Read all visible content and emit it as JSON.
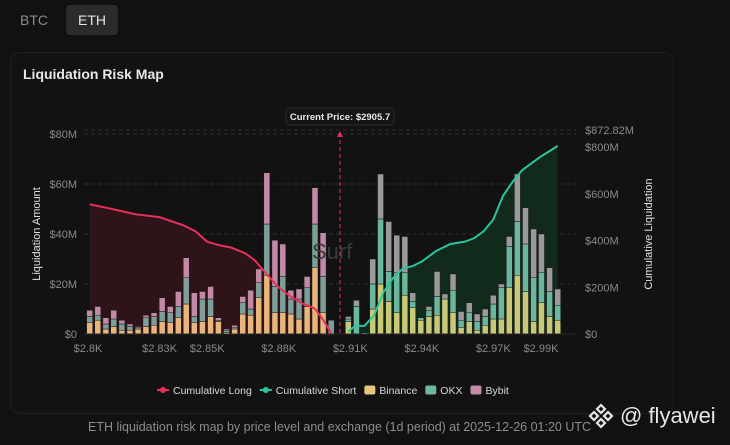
{
  "tabs": [
    {
      "label": "BTC",
      "active": false
    },
    {
      "label": "ETH",
      "active": true
    }
  ],
  "card": {
    "title": "Liquidation Risk Map"
  },
  "caption": "ETH liquidation risk map by price level and exchange (1d period) at 2025-12-26 01:20 UTC",
  "watermark": {
    "handle": "@ flyawei",
    "logo": "binance-square-logo"
  },
  "chart_data": {
    "type": "bar",
    "title": "Liquidation Risk Map",
    "xlabel": "",
    "ylabel": "Liquidation Amount",
    "y2label": "Cumulative Liquidation",
    "ylim": [
      0,
      80
    ],
    "y2lim": [
      0,
      872.82
    ],
    "y_ticks": [
      "$0",
      "$20M",
      "$40M",
      "$60M",
      "$80M"
    ],
    "y2_ticks": [
      "$0",
      "$200M",
      "$400M",
      "$600M",
      "$800M",
      "$872.82M"
    ],
    "x_ticks": [
      {
        "label": "$2.8K",
        "value": 2800
      },
      {
        "label": "$2.83K",
        "value": 2830
      },
      {
        "label": "$2.85K",
        "value": 2850
      },
      {
        "label": "$2.88K",
        "value": 2880
      },
      {
        "label": "$2.91K",
        "value": 2910
      },
      {
        "label": "$2.94K",
        "value": 2940
      },
      {
        "label": "$2.97K",
        "value": 2970
      },
      {
        "label": "$2.99K",
        "value": 2990
      }
    ],
    "xlim": [
      2799,
      2998
    ],
    "current_price": {
      "label": "Current Price: $2905.7",
      "value": 2905.7
    },
    "grid": true,
    "legend_position": "bottom",
    "legend": [
      {
        "name": "Cumulative Long",
        "type": "line",
        "color": "#e8305a"
      },
      {
        "name": "Cumulative Short",
        "type": "line",
        "color": "#2bc4a0"
      },
      {
        "name": "Binance",
        "type": "bar",
        "color": "#e6c77a"
      },
      {
        "name": "OKX",
        "type": "bar",
        "color": "#6fb5a4"
      },
      {
        "name": "Bybit",
        "type": "bar",
        "color": "#c48aa8"
      }
    ],
    "colors": {
      "long_binance": "#e8b57a",
      "long_okx": "#7e9e9a",
      "long_bybit": "#c38aa8",
      "short_binance": "#c9c877",
      "short_okx": "#6bb79d",
      "short_bybit_gray": "#9a9a9a",
      "short_bybit_pink": "#c38aa8",
      "long_line": "#e8305a",
      "short_line": "#2bc4a0",
      "long_fill": "#2e1419",
      "short_fill": "#122a1c"
    },
    "long_bars": [
      {
        "price": 2800.7,
        "binance": 4.5,
        "okx": 2.5,
        "bybit": 2.5
      },
      {
        "price": 2804.1,
        "binance": 5.5,
        "okx": 2.0,
        "bybit": 3.5
      },
      {
        "price": 2807.5,
        "binance": 2.0,
        "okx": 2.0,
        "bybit": 2.5
      },
      {
        "price": 2810.8,
        "binance": 3.0,
        "okx": 3.0,
        "bybit": 3.5
      },
      {
        "price": 2814.2,
        "binance": 1.5,
        "okx": 2.5,
        "bybit": 1.5
      },
      {
        "price": 2817.6,
        "binance": 1.5,
        "okx": 1.5,
        "bybit": 1.0
      },
      {
        "price": 2821.0,
        "binance": 2.0,
        "okx": 0.5,
        "bybit": 0.5
      },
      {
        "price": 2824.3,
        "binance": 3.0,
        "okx": 3.5,
        "bybit": 1.0
      },
      {
        "price": 2827.7,
        "binance": 3.5,
        "okx": 3.5,
        "bybit": 1.5
      },
      {
        "price": 2831.1,
        "binance": 5.0,
        "okx": 4.0,
        "bybit": 5.5
      },
      {
        "price": 2834.5,
        "binance": 4.5,
        "okx": 4.0,
        "bybit": 2.5
      },
      {
        "price": 2837.9,
        "binance": 6.5,
        "okx": 4.5,
        "bybit": 6.0
      },
      {
        "price": 2841.2,
        "binance": 12.0,
        "okx": 10.5,
        "bybit": 8.0
      },
      {
        "price": 2844.6,
        "binance": 4.5,
        "okx": 2.5,
        "bybit": 9.5
      },
      {
        "price": 2848.0,
        "binance": 5.0,
        "okx": 9.0,
        "bybit": 3.0
      },
      {
        "price": 2851.4,
        "binance": 7.0,
        "okx": 7.0,
        "bybit": 5.0
      },
      {
        "price": 2854.7,
        "binance": 5.0,
        "okx": 0.5,
        "bybit": 1.0
      },
      {
        "price": 2858.1,
        "binance": 0.5,
        "okx": 1.0,
        "bybit": 0.5
      },
      {
        "price": 2861.5,
        "binance": 2.0,
        "okx": 0.5,
        "bybit": 1.0
      },
      {
        "price": 2864.9,
        "binance": 8.0,
        "okx": 4.5,
        "bybit": 2.5
      },
      {
        "price": 2868.2,
        "binance": 7.5,
        "okx": 2.5,
        "bybit": 7.5
      },
      {
        "price": 2871.6,
        "binance": 14.5,
        "okx": 6.0,
        "bybit": 5.5
      },
      {
        "price": 2875.0,
        "binance": 23.5,
        "okx": 20.5,
        "bybit": 20.5
      },
      {
        "price": 2878.4,
        "binance": 8.5,
        "okx": 10.5,
        "bybit": 18.5
      },
      {
        "price": 2881.7,
        "binance": 8.5,
        "okx": 14.5,
        "bybit": 13.0
      },
      {
        "price": 2885.1,
        "binance": 8.0,
        "okx": 6.0,
        "bybit": 3.5
      },
      {
        "price": 2888.5,
        "binance": 6.0,
        "okx": 8.0,
        "bybit": 4.0
      },
      {
        "price": 2891.9,
        "binance": 11.0,
        "okx": 7.5,
        "bybit": 4.5
      },
      {
        "price": 2895.2,
        "binance": 26.5,
        "okx": 17.5,
        "bybit": 14.5
      },
      {
        "price": 2898.6,
        "binance": 8.5,
        "okx": 14.5,
        "bybit": 17.5
      },
      {
        "price": 2902.0,
        "binance": 0,
        "okx": 5.5,
        "bybit": 0
      }
    ],
    "short_bars": [
      {
        "price": 2909.2,
        "binance": 5.0,
        "okx": 1.0,
        "bybit": 1.0
      },
      {
        "price": 2912.6,
        "binance": 0,
        "okx": 11.0,
        "bybit": 2.5
      },
      {
        "price": 2916.0,
        "binance": 0,
        "okx": 0.5,
        "bybit": 0
      },
      {
        "price": 2919.4,
        "binance": 10.0,
        "okx": 10.0,
        "bybit": 10.0
      },
      {
        "price": 2922.7,
        "binance": 20.0,
        "okx": 26.0,
        "bybit": 18.0
      },
      {
        "price": 2926.1,
        "binance": 13.0,
        "okx": 12.0,
        "bybit": 20.0
      },
      {
        "price": 2929.5,
        "binance": 8.5,
        "okx": 16.0,
        "bybit": 15.0
      },
      {
        "price": 2932.9,
        "binance": 15.5,
        "okx": 9.0,
        "bybit": 14.5
      },
      {
        "price": 2936.2,
        "binance": 10.5,
        "okx": 2.5,
        "bybit": 3.5
      },
      {
        "price": 2939.6,
        "binance": 5.5,
        "okx": 1.0,
        "bybit": 0
      },
      {
        "price": 2943.0,
        "binance": 7.0,
        "okx": 2.5,
        "bybit": 1.5
      },
      {
        "price": 2946.4,
        "binance": 7.5,
        "okx": 7.5,
        "bybit": 10.0
      },
      {
        "price": 2949.7,
        "binance": 14.0,
        "okx": 0,
        "bybit": 2.0
      },
      {
        "price": 2953.1,
        "binance": 8.5,
        "okx": 9.0,
        "bybit": 6.5
      },
      {
        "price": 2956.5,
        "binance": 2.5,
        "okx": 3.0,
        "bybit": 3.5
      },
      {
        "price": 2959.9,
        "binance": 5.0,
        "okx": 3.5,
        "bybit": 4.0
      },
      {
        "price": 2963.2,
        "binance": 1.5,
        "okx": 3.5,
        "bybit": 3.0
      },
      {
        "price": 2966.6,
        "binance": 3.5,
        "okx": 3.5,
        "bybit": 3.0
      },
      {
        "price": 2970.0,
        "binance": 6.0,
        "okx": 6.0,
        "bybit": 3.5
      },
      {
        "price": 2973.4,
        "binance": 6.0,
        "okx": 12.5,
        "bybit": 1.5
      },
      {
        "price": 2976.7,
        "binance": 18.5,
        "okx": 16.5,
        "bybit": 4.0
      },
      {
        "price": 2980.1,
        "binance": 23.5,
        "okx": 21.5,
        "bybit": 19.0
      },
      {
        "price": 2983.5,
        "binance": 17.0,
        "okx": 19.0,
        "bybit": 14.5
      },
      {
        "price": 2986.9,
        "binance": 5.0,
        "okx": 17.5,
        "bybit": 19.5
      },
      {
        "price": 2990.2,
        "binance": 12.5,
        "okx": 12.0,
        "bybit": 15.5
      },
      {
        "price": 2993.6,
        "binance": 7.0,
        "okx": 10.0,
        "bybit": 9.5
      },
      {
        "price": 2997.0,
        "binance": 5.5,
        "okx": 6.0,
        "bybit": 6.5
      }
    ],
    "short_extra_bars": [
      {
        "price": 2976.7,
        "binance": 8.5,
        "okx": 10.5,
        "bybit": 5.0
      },
      {
        "price": 2980.1,
        "binance": 5.5,
        "okx": 4.0,
        "bybit": 2.5
      },
      {
        "price": 2983.5,
        "binance": 12.0,
        "okx": 4.0,
        "bybit": 3.5
      },
      {
        "price": 2986.9,
        "binance": 3.5,
        "okx": 5.0,
        "bybit": 1.5
      },
      {
        "price": 2990.2,
        "binance": 10.0,
        "okx": 7.0,
        "bybit": 5.0
      }
    ],
    "cumulative_long": [
      {
        "price": 2800.7,
        "value": 555
      },
      {
        "price": 2810,
        "value": 535
      },
      {
        "price": 2820,
        "value": 512
      },
      {
        "price": 2830,
        "value": 500
      },
      {
        "price": 2840,
        "value": 465
      },
      {
        "price": 2845,
        "value": 440
      },
      {
        "price": 2850,
        "value": 395
      },
      {
        "price": 2855,
        "value": 380
      },
      {
        "price": 2860,
        "value": 370
      },
      {
        "price": 2866,
        "value": 345
      },
      {
        "price": 2870,
        "value": 315
      },
      {
        "price": 2875,
        "value": 255
      },
      {
        "price": 2880,
        "value": 200
      },
      {
        "price": 2885,
        "value": 160
      },
      {
        "price": 2890,
        "value": 130
      },
      {
        "price": 2895,
        "value": 110
      },
      {
        "price": 2898,
        "value": 70
      },
      {
        "price": 2902,
        "value": 5
      }
    ],
    "cumulative_short": [
      {
        "price": 2909.2,
        "value": 10
      },
      {
        "price": 2912,
        "value": 35
      },
      {
        "price": 2916,
        "value": 35
      },
      {
        "price": 2920,
        "value": 80
      },
      {
        "price": 2924,
        "value": 180
      },
      {
        "price": 2928,
        "value": 240
      },
      {
        "price": 2932,
        "value": 280
      },
      {
        "price": 2936,
        "value": 290
      },
      {
        "price": 2940,
        "value": 310
      },
      {
        "price": 2946,
        "value": 355
      },
      {
        "price": 2952,
        "value": 385
      },
      {
        "price": 2958,
        "value": 395
      },
      {
        "price": 2962,
        "value": 410
      },
      {
        "price": 2966,
        "value": 440
      },
      {
        "price": 2970,
        "value": 490
      },
      {
        "price": 2974,
        "value": 590
      },
      {
        "price": 2978,
        "value": 650
      },
      {
        "price": 2982,
        "value": 700
      },
      {
        "price": 2986,
        "value": 730
      },
      {
        "price": 2990,
        "value": 760
      },
      {
        "price": 2994,
        "value": 785
      },
      {
        "price": 2997,
        "value": 805
      }
    ]
  }
}
